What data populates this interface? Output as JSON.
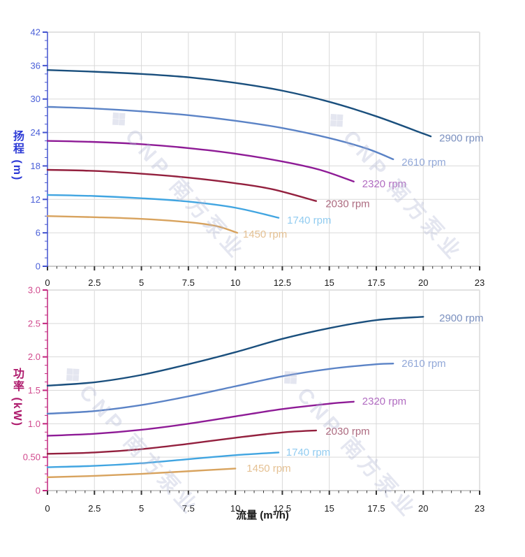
{
  "watermark": {
    "logo": "❖",
    "text": "CNP 南方泵业"
  },
  "chart_data": [
    {
      "type": "line",
      "name": "head-curve-chart",
      "title": "",
      "xlabel": "",
      "ylabel": "扬程 (m)",
      "xlim": [
        0,
        23
      ],
      "ylim": [
        0,
        42
      ],
      "grid": true,
      "axis_line_color": "#4353cf",
      "tick_label_color": "#4a5fd8",
      "x_tick_color": "#333333",
      "x_label_color": "#1a1a1a",
      "x_tick_values": [
        0,
        2.5,
        5,
        7.5,
        10,
        12.5,
        15,
        17.5,
        20,
        23
      ],
      "x_tick_labels": [
        "0",
        "2.5",
        "5",
        "7.5",
        "10",
        "12.5",
        "15",
        "17.5",
        "20",
        "23"
      ],
      "x_minor_step": 0.5,
      "y_tick_values": [
        0,
        6,
        12,
        18,
        24,
        30,
        36,
        42
      ],
      "y_tick_labels": [
        "0",
        "6",
        "12",
        "18",
        "24",
        "30",
        "36",
        "42"
      ],
      "y_minor_step": 1.5,
      "series": [
        {
          "name": "2900 rpm",
          "color": "#1a4f7d",
          "label_color": "#7b90bf",
          "label_pos": [
            20.85,
            23.0
          ],
          "points": [
            [
              0,
              35.2
            ],
            [
              2.5,
              34.9
            ],
            [
              5,
              34.5
            ],
            [
              7.5,
              33.9
            ],
            [
              10,
              32.9
            ],
            [
              12.5,
              31.5
            ],
            [
              15,
              29.5
            ],
            [
              17.5,
              26.9
            ],
            [
              20,
              23.8
            ],
            [
              20.4,
              23.3
            ]
          ]
        },
        {
          "name": "2610 rpm",
          "color": "#5b83c6",
          "label_color": "#92a8d8",
          "label_pos": [
            18.85,
            18.7
          ],
          "points": [
            [
              0,
              28.6
            ],
            [
              2.5,
              28.3
            ],
            [
              5,
              27.8
            ],
            [
              7.5,
              27.1
            ],
            [
              10,
              26.1
            ],
            [
              12.5,
              24.8
            ],
            [
              15,
              23.0
            ],
            [
              17,
              21.1
            ],
            [
              18.4,
              19.2
            ]
          ]
        },
        {
          "name": "2320 rpm",
          "color": "#8e1b96",
          "label_color": "#b16cc1",
          "label_pos": [
            16.75,
            14.8
          ],
          "points": [
            [
              0,
              22.5
            ],
            [
              2.5,
              22.3
            ],
            [
              5,
              21.9
            ],
            [
              7.5,
              21.2
            ],
            [
              10,
              20.2
            ],
            [
              12.5,
              18.8
            ],
            [
              14.5,
              17.3
            ],
            [
              16.3,
              15.2
            ]
          ]
        },
        {
          "name": "2030 rpm",
          "color": "#93203e",
          "label_color": "#ad6b80",
          "label_pos": [
            14.8,
            11.2
          ],
          "points": [
            [
              0,
              17.3
            ],
            [
              2.5,
              17.1
            ],
            [
              5,
              16.6
            ],
            [
              7.5,
              15.9
            ],
            [
              10,
              14.9
            ],
            [
              12,
              13.8
            ],
            [
              14.3,
              11.7
            ]
          ]
        },
        {
          "name": "1740 rpm",
          "color": "#41a5e1",
          "label_color": "#92ccf0",
          "label_pos": [
            12.75,
            8.3
          ],
          "points": [
            [
              0,
              12.8
            ],
            [
              2.5,
              12.6
            ],
            [
              5,
              12.2
            ],
            [
              7.5,
              11.6
            ],
            [
              10,
              10.5
            ],
            [
              12.3,
              8.7
            ]
          ]
        },
        {
          "name": "1450 rpm",
          "color": "#d8a35e",
          "label_color": "#e5c193",
          "label_pos": [
            10.4,
            5.75
          ],
          "points": [
            [
              0,
              9.0
            ],
            [
              2.5,
              8.8
            ],
            [
              5,
              8.5
            ],
            [
              7.5,
              7.9
            ],
            [
              9,
              7.2
            ],
            [
              10.1,
              6.0
            ]
          ]
        }
      ]
    },
    {
      "type": "line",
      "name": "power-curve-chart",
      "title": "",
      "xlabel": "流量 (m³/h)",
      "ylabel": "功率 (kW)",
      "xlim": [
        0,
        23
      ],
      "ylim": [
        0,
        3.0
      ],
      "grid": true,
      "axis_line_color": "#c2267e",
      "tick_label_color": "#d1498d",
      "x_tick_color": "#333333",
      "x_label_color": "#1a1a1a",
      "x_tick_values": [
        0,
        2.5,
        5,
        7.5,
        10,
        12.5,
        15,
        17.5,
        20,
        23
      ],
      "x_tick_labels": [
        "0",
        "2.5",
        "5",
        "7.5",
        "10",
        "12.5",
        "15",
        "17.5",
        "20",
        "23"
      ],
      "x_minor_step": 0.5,
      "y_tick_values": [
        0,
        0.5,
        1.0,
        1.5,
        2.0,
        2.5,
        3.0
      ],
      "y_tick_labels": [
        "0",
        "0.50",
        "1.0",
        "1.5",
        "2.0",
        "2.5",
        "3.0"
      ],
      "y_minor_step": 0.125,
      "series": [
        {
          "name": "2900 rpm",
          "color": "#1a4f7d",
          "label_color": "#7b90bf",
          "label_pos": [
            20.85,
            2.58
          ],
          "points": [
            [
              0,
              1.57
            ],
            [
              2.5,
              1.62
            ],
            [
              5,
              1.73
            ],
            [
              7.5,
              1.89
            ],
            [
              10,
              2.07
            ],
            [
              12.5,
              2.27
            ],
            [
              15,
              2.43
            ],
            [
              17.5,
              2.55
            ],
            [
              20,
              2.6
            ]
          ]
        },
        {
          "name": "2610 rpm",
          "color": "#5b83c6",
          "label_color": "#92a8d8",
          "label_pos": [
            18.85,
            1.9
          ],
          "points": [
            [
              0,
              1.15
            ],
            [
              2.5,
              1.19
            ],
            [
              5,
              1.28
            ],
            [
              7.5,
              1.41
            ],
            [
              10,
              1.56
            ],
            [
              12.5,
              1.71
            ],
            [
              15,
              1.82
            ],
            [
              17.5,
              1.89
            ],
            [
              18.4,
              1.9
            ]
          ]
        },
        {
          "name": "2320 rpm",
          "color": "#8e1b96",
          "label_color": "#b16cc1",
          "label_pos": [
            16.75,
            1.34
          ],
          "points": [
            [
              0,
              0.82
            ],
            [
              2.5,
              0.85
            ],
            [
              5,
              0.91
            ],
            [
              7.5,
              1.0
            ],
            [
              10,
              1.11
            ],
            [
              12.5,
              1.22
            ],
            [
              15,
              1.3
            ],
            [
              16.3,
              1.33
            ]
          ]
        },
        {
          "name": "2030 rpm",
          "color": "#93203e",
          "label_color": "#ad6b80",
          "label_pos": [
            14.8,
            0.89
          ],
          "points": [
            [
              0,
              0.55
            ],
            [
              2.5,
              0.57
            ],
            [
              5,
              0.62
            ],
            [
              7.5,
              0.7
            ],
            [
              10,
              0.79
            ],
            [
              12.5,
              0.87
            ],
            [
              14.3,
              0.9
            ]
          ]
        },
        {
          "name": "1740 rpm",
          "color": "#41a5e1",
          "label_color": "#92ccf0",
          "label_pos": [
            12.7,
            0.575
          ],
          "points": [
            [
              0,
              0.35
            ],
            [
              2.5,
              0.37
            ],
            [
              5,
              0.41
            ],
            [
              7.5,
              0.47
            ],
            [
              10,
              0.53
            ],
            [
              12.3,
              0.57
            ]
          ]
        },
        {
          "name": "1450 rpm",
          "color": "#d8a35e",
          "label_color": "#e5c193",
          "label_pos": [
            10.6,
            0.335
          ],
          "points": [
            [
              0,
              0.2
            ],
            [
              2.5,
              0.22
            ],
            [
              5,
              0.25
            ],
            [
              7.5,
              0.29
            ],
            [
              10,
              0.33
            ]
          ]
        }
      ]
    }
  ]
}
